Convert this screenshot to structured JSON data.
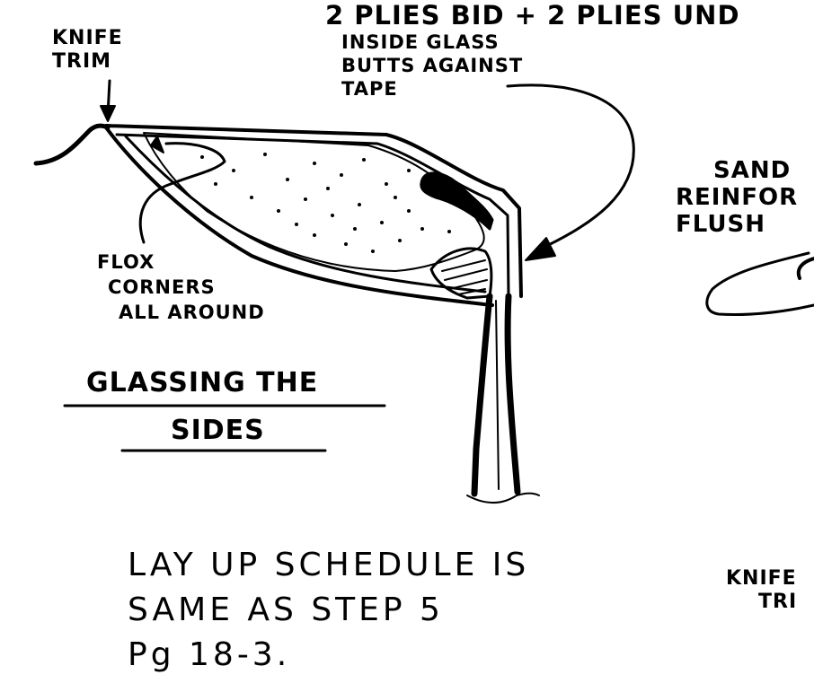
{
  "annotations": {
    "knife_trim_left": [
      "KNIFE",
      "TRIM"
    ],
    "plies_note": "2 PLIES BID + 2 PLIES UND",
    "inside_glass_note": [
      "INSIDE GLASS",
      "BUTTS AGAINST",
      "TAPE"
    ],
    "sand_note": [
      "SAND",
      "REINFOR",
      "FLUSH"
    ],
    "flox_note": [
      "FLOX",
      "CORNERS",
      "ALL AROUND"
    ],
    "knife_trim_right": [
      "KNIFE",
      "TRI"
    ]
  },
  "title": [
    "GLASSING THE",
    "SIDES"
  ],
  "layup_note": [
    "LAY UP SCHEDULE IS",
    "SAME AS STEP 5",
    "Pg 18-3."
  ],
  "colors": {
    "ink": "#000000",
    "paper": "#ffffff"
  }
}
